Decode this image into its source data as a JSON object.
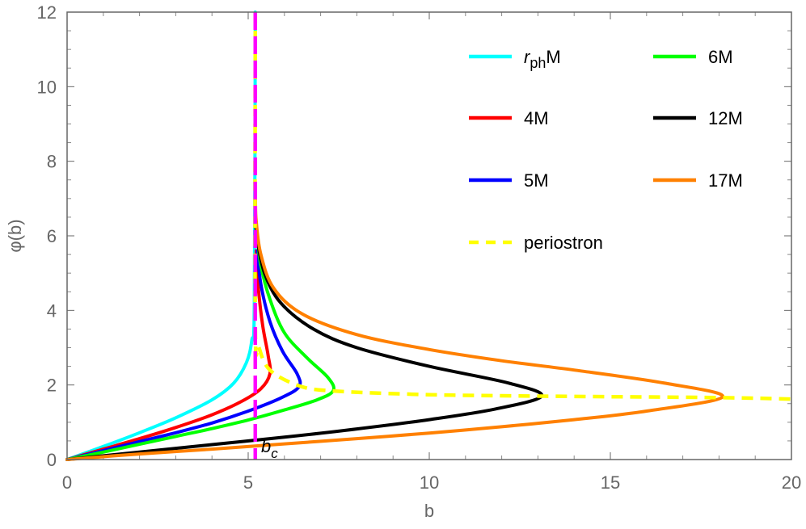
{
  "chart_data": {
    "type": "line",
    "title": "",
    "xlabel": "b",
    "ylabel": "φ(b)",
    "xlim": [
      0,
      20
    ],
    "ylim": [
      0,
      12
    ],
    "grid": false,
    "legend_position": "upper-right-inside",
    "x_ticks": [
      "0",
      "5",
      "10",
      "15",
      "20"
    ],
    "y_ticks": [
      "0",
      "2",
      "4",
      "6",
      "8",
      "10",
      "12"
    ],
    "annotations": [
      {
        "text": "b_c",
        "display_main": "b",
        "display_sub": "c",
        "x": 5.196,
        "y": 0
      }
    ],
    "critical_line": {
      "name": "b_c",
      "x": 5.196,
      "color": "#ff00ff",
      "style": "dashed"
    },
    "series": [
      {
        "name": "r_ph M",
        "label_main": "r",
        "label_sub": "ph",
        "label_suffix": "M",
        "color": "#00ffff",
        "style": "solid",
        "points": [
          [
            0,
            0
          ],
          [
            1,
            0.35
          ],
          [
            2,
            0.72
          ],
          [
            3,
            1.12
          ],
          [
            4,
            1.6
          ],
          [
            4.6,
            2.05
          ],
          [
            4.95,
            2.6
          ],
          [
            5.1,
            3.2
          ],
          [
            5.17,
            4.2
          ],
          [
            5.196,
            12
          ]
        ]
      },
      {
        "name": "4M",
        "color": "#ff0000",
        "style": "solid",
        "points": [
          [
            0,
            0
          ],
          [
            1,
            0.28
          ],
          [
            2,
            0.56
          ],
          [
            3,
            0.86
          ],
          [
            4,
            1.2
          ],
          [
            4.8,
            1.55
          ],
          [
            5.35,
            1.9
          ],
          [
            5.6,
            2.3
          ],
          [
            5.55,
            2.8
          ],
          [
            5.4,
            3.6
          ],
          [
            5.28,
            4.6
          ],
          [
            5.22,
            5.6
          ]
        ]
      },
      {
        "name": "5M",
        "color": "#0000ff",
        "style": "solid",
        "points": [
          [
            0,
            0
          ],
          [
            1,
            0.24
          ],
          [
            2,
            0.48
          ],
          [
            3,
            0.72
          ],
          [
            4,
            0.98
          ],
          [
            5,
            1.3
          ],
          [
            5.9,
            1.65
          ],
          [
            6.4,
            1.95
          ],
          [
            6.35,
            2.3
          ],
          [
            5.95,
            2.9
          ],
          [
            5.6,
            3.7
          ],
          [
            5.35,
            4.7
          ],
          [
            5.25,
            5.6
          ]
        ]
      },
      {
        "name": "6M",
        "color": "#00ff00",
        "style": "solid",
        "points": [
          [
            0,
            0
          ],
          [
            1,
            0.2
          ],
          [
            2,
            0.41
          ],
          [
            3,
            0.62
          ],
          [
            4,
            0.83
          ],
          [
            5,
            1.06
          ],
          [
            6,
            1.33
          ],
          [
            6.9,
            1.6
          ],
          [
            7.35,
            1.85
          ],
          [
            7.2,
            2.2
          ],
          [
            6.6,
            2.75
          ],
          [
            6.0,
            3.4
          ],
          [
            5.6,
            4.3
          ],
          [
            5.35,
            5.2
          ],
          [
            5.25,
            6.0
          ]
        ]
      },
      {
        "name": "12M",
        "color": "#000000",
        "style": "solid",
        "points": [
          [
            0,
            0
          ],
          [
            1,
            0.1
          ],
          [
            2,
            0.2
          ],
          [
            4,
            0.4
          ],
          [
            6,
            0.6
          ],
          [
            8,
            0.82
          ],
          [
            10,
            1.07
          ],
          [
            11.8,
            1.35
          ],
          [
            13.1,
            1.7
          ],
          [
            12.2,
            2.05
          ],
          [
            10,
            2.5
          ],
          [
            8,
            3.0
          ],
          [
            6.8,
            3.5
          ],
          [
            5.9,
            4.2
          ],
          [
            5.45,
            5.0
          ],
          [
            5.25,
            5.9
          ],
          [
            5.2,
            6.5
          ]
        ]
      },
      {
        "name": "17M",
        "color": "#ff8000",
        "style": "solid",
        "points": [
          [
            0,
            0
          ],
          [
            2,
            0.15
          ],
          [
            4,
            0.28
          ],
          [
            6,
            0.42
          ],
          [
            8,
            0.56
          ],
          [
            10,
            0.71
          ],
          [
            12,
            0.88
          ],
          [
            14,
            1.07
          ],
          [
            16,
            1.3
          ],
          [
            18.1,
            1.68
          ],
          [
            16.5,
            2.05
          ],
          [
            14,
            2.4
          ],
          [
            12,
            2.65
          ],
          [
            10,
            2.95
          ],
          [
            8,
            3.35
          ],
          [
            6.5,
            3.9
          ],
          [
            5.7,
            4.6
          ],
          [
            5.35,
            5.5
          ],
          [
            5.22,
            6.4
          ],
          [
            5.2,
            7.0
          ]
        ]
      },
      {
        "name": "periostron",
        "color": "#ffff00",
        "style": "dashed",
        "points": [
          [
            5.196,
            12
          ],
          [
            5.196,
            3.6
          ],
          [
            5.3,
            3.0
          ],
          [
            5.6,
            2.4
          ],
          [
            6.4,
            1.98
          ],
          [
            7.35,
            1.84
          ],
          [
            10,
            1.74
          ],
          [
            13.1,
            1.7
          ],
          [
            18.1,
            1.66
          ],
          [
            20,
            1.62
          ]
        ]
      }
    ]
  },
  "legend": {
    "items": [
      {
        "main": "r",
        "sub": "ph",
        "suffix": "M",
        "color": "#00ffff",
        "style": "solid"
      },
      {
        "text": "6M",
        "color": "#00ff00",
        "style": "solid"
      },
      {
        "text": "4M",
        "color": "#ff0000",
        "style": "solid"
      },
      {
        "text": "12M",
        "color": "#000000",
        "style": "solid"
      },
      {
        "text": "5M",
        "color": "#0000ff",
        "style": "solid"
      },
      {
        "text": "17M",
        "color": "#ff8000",
        "style": "solid"
      },
      {
        "text": "periostron",
        "color": "#ffff00",
        "style": "dashed"
      }
    ]
  },
  "axes": {
    "xlabel": "b",
    "ylabel": "φ(b)",
    "x_ticks": [
      "0",
      "5",
      "10",
      "15",
      "20"
    ],
    "y_ticks": [
      "0",
      "2",
      "4",
      "6",
      "8",
      "10",
      "12"
    ]
  },
  "annotation": {
    "main": "b",
    "sub": "c"
  }
}
